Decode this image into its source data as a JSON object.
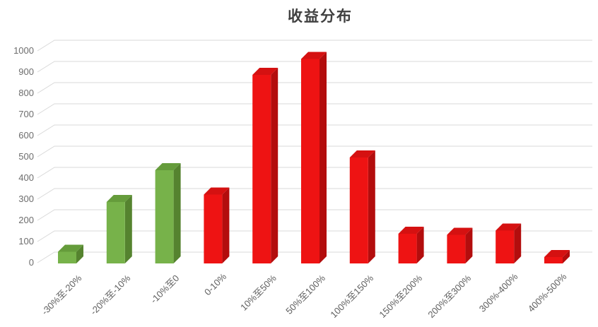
{
  "title": "收益分布",
  "chart_data": {
    "type": "bar",
    "style": "3d-column",
    "title": "收益分布",
    "categories": [
      "-30%至-20%",
      "-20%至-10%",
      "-10%至0",
      "0-10%",
      "10%至50%",
      "50%至100%",
      "100%至150%",
      "150%至200%",
      "200%至300%",
      "300%-400%",
      "400%-500%"
    ],
    "values": [
      55,
      290,
      440,
      325,
      890,
      965,
      500,
      140,
      135,
      155,
      30
    ],
    "bar_color_groups": [
      "green",
      "green",
      "green",
      "red",
      "red",
      "red",
      "red",
      "red",
      "red",
      "red",
      "red"
    ],
    "palette": {
      "green": {
        "front": "#77b24a",
        "side": "#55832f",
        "top": "#659c3b"
      },
      "red": {
        "front": "#ee1313",
        "side": "#b30d0d",
        "top": "#d51111"
      }
    },
    "xlabel": "",
    "ylabel": "",
    "ylim": [
      0,
      1000
    ],
    "ytick_step": 100,
    "yticks": [
      0,
      100,
      200,
      300,
      400,
      500,
      600,
      700,
      800,
      900,
      1000
    ],
    "grid": true,
    "legend": "none",
    "gridline_color": "#d9d9d9",
    "axis_label_color": "#5f5f5f",
    "title_color": "#3f3f3f",
    "background": "#ffffff"
  }
}
